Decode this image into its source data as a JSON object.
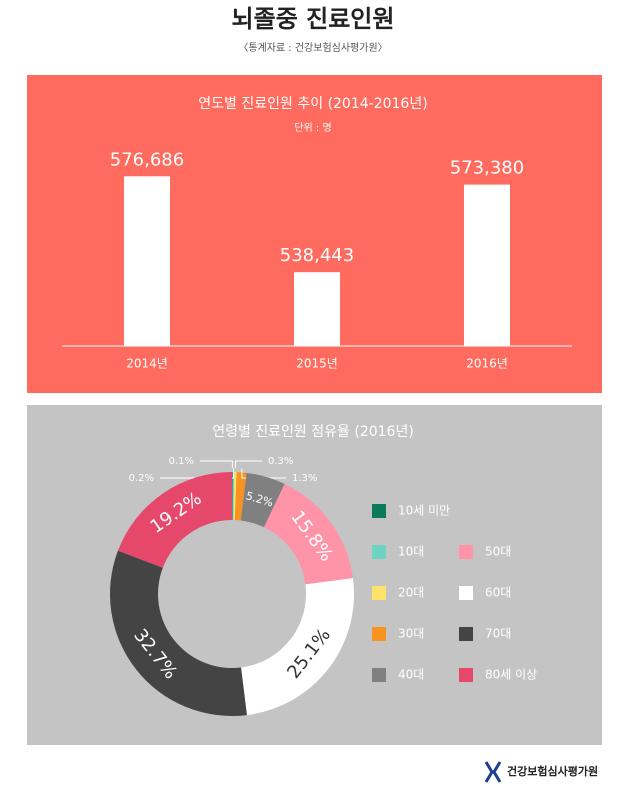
{
  "title": "뇌졸중 진료인원",
  "subtitle": "〈통계자료 : 건강보험심사평가원〉",
  "footer": "건강보험심사평가원",
  "chart_data": [
    {
      "type": "bar",
      "title": "연도별 진료인원 추이 (2014-2016년)",
      "subtitle": "단위 : 명",
      "categories": [
        "2014년",
        "2015년",
        "2016년"
      ],
      "values": [
        576686,
        538443,
        573380
      ],
      "value_labels": [
        "576,686",
        "538,443",
        "573,380"
      ],
      "color": "#ffffff",
      "ylim": [
        509000,
        580000
      ]
    },
    {
      "type": "pie",
      "title": "연령별 진료인원 점유율 (2016년)",
      "categories": [
        "10세 미만",
        "10대",
        "20대",
        "30대",
        "40대",
        "50대",
        "60대",
        "70대",
        "80세 이상"
      ],
      "values": [
        0.1,
        0.2,
        0.3,
        1.3,
        5.2,
        15.8,
        25.1,
        32.7,
        19.2
      ],
      "value_labels": [
        "0.1%",
        "0.2%",
        "0.3%",
        "1.3%",
        "5.2%",
        "15.8%",
        "25.1%",
        "32.7%",
        "19.2%"
      ],
      "colors": [
        "#0b7a5c",
        "#6dd3c3",
        "#ffe26a",
        "#f7931e",
        "#808080",
        "#ff94a9",
        "#ffffff",
        "#444444",
        "#e5486a"
      ],
      "donut": true
    }
  ]
}
